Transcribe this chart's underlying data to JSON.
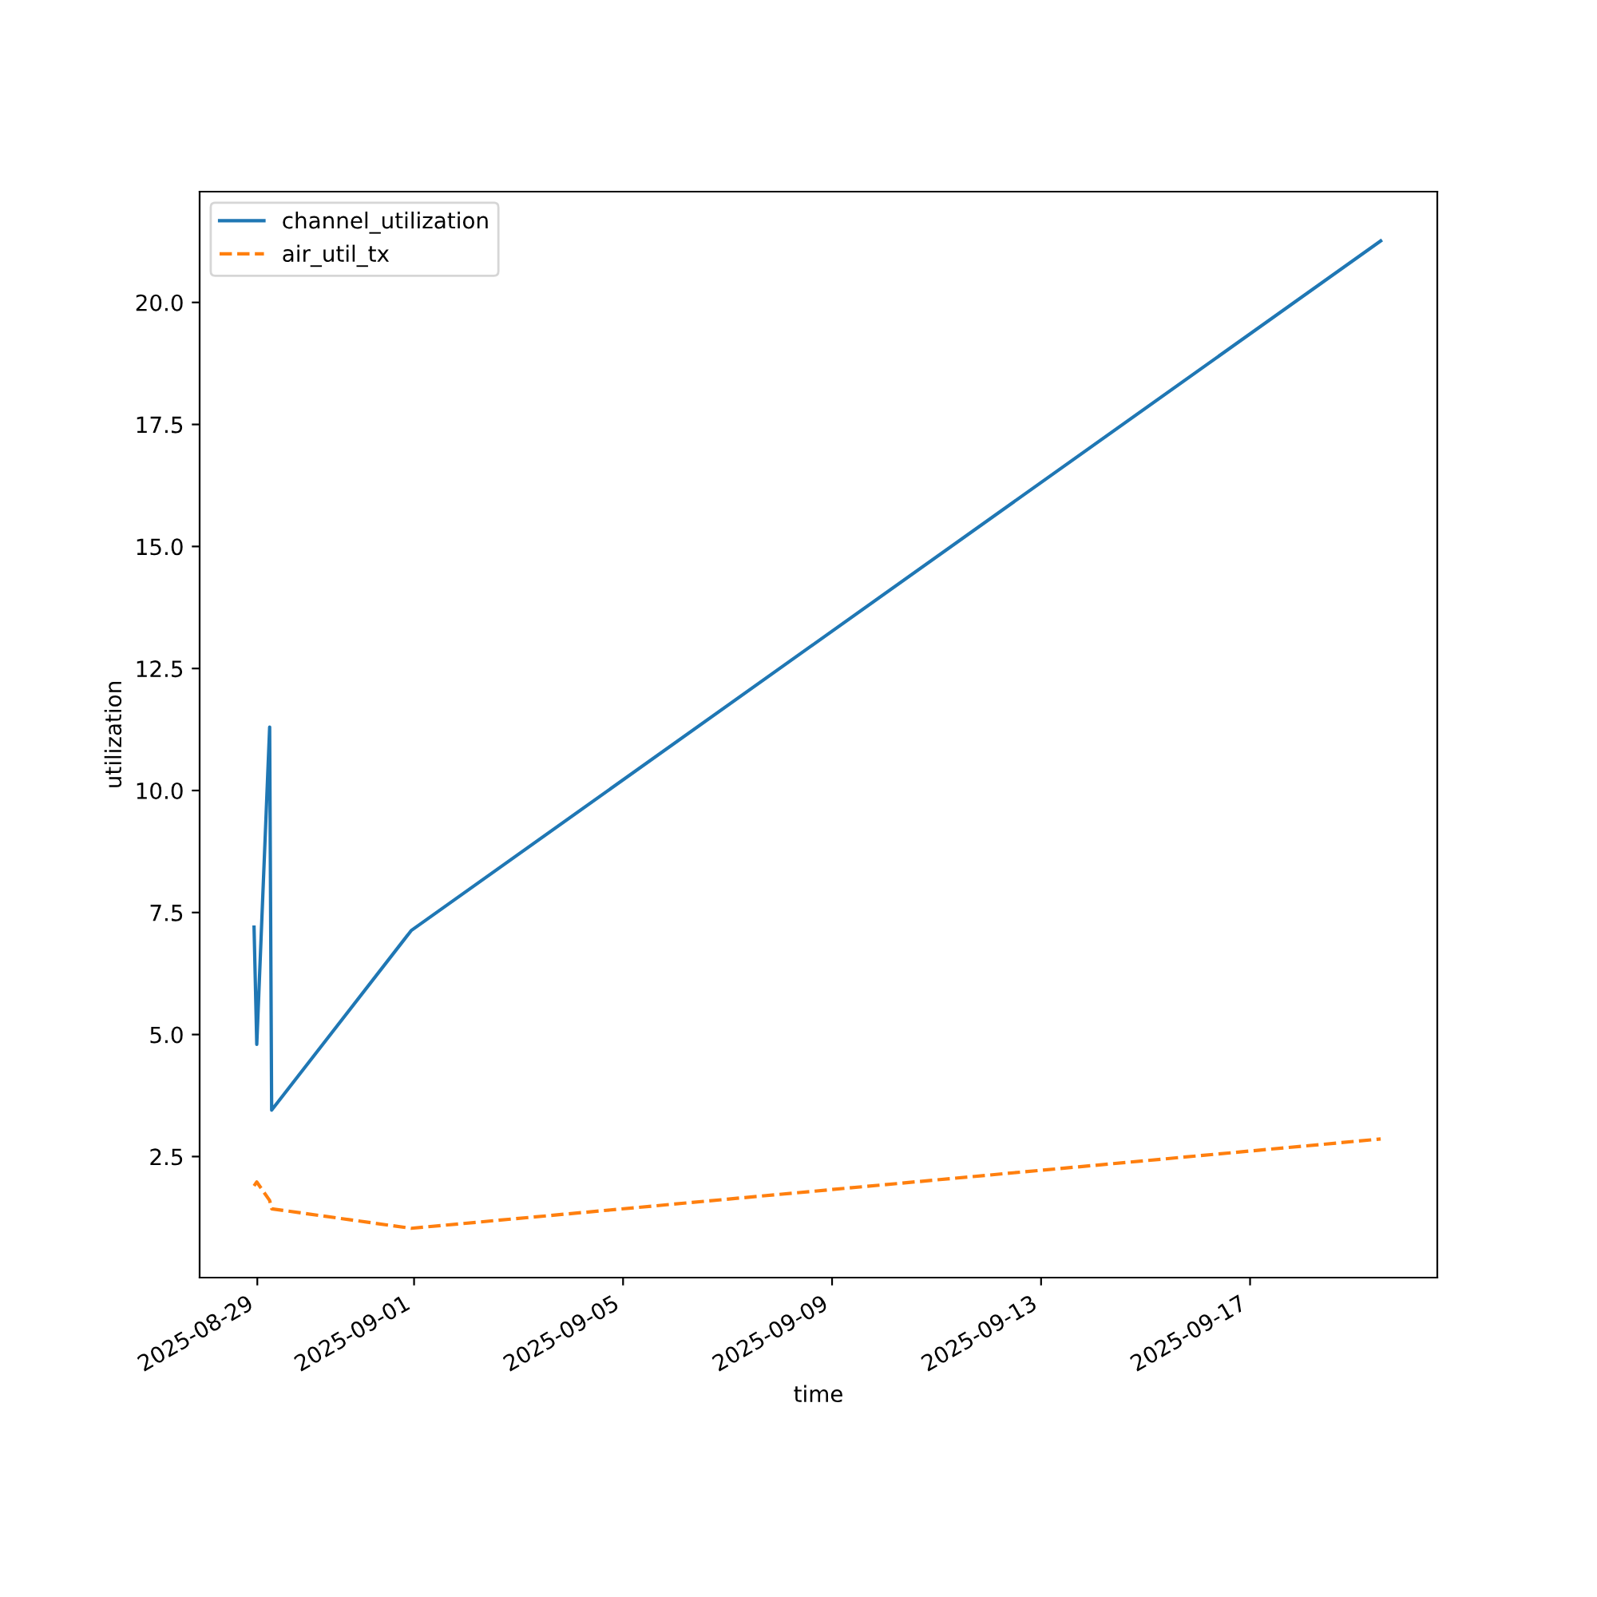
{
  "chart_data": {
    "type": "line",
    "xlabel": "time",
    "ylabel": "utilization",
    "x": [
      "2025-08-28T22:30",
      "2025-08-28T23:45",
      "2025-08-29T05:40",
      "2025-08-29T06:35",
      "2025-08-31T22:40",
      "2025-09-19T12:00"
    ],
    "series": [
      {
        "name": "channel_utilization",
        "color": "#1f77b4",
        "line_style": "solid",
        "values": [
          7.2,
          4.8,
          11.3,
          3.45,
          7.13,
          21.26
        ]
      },
      {
        "name": "air_util_tx",
        "color": "#ff7f0e",
        "line_style": "dashed",
        "values": [
          1.9,
          1.98,
          1.6,
          1.43,
          1.03,
          2.86
        ]
      }
    ],
    "xlim": [
      "2025-08-27T21:30",
      "2025-09-20T14:00"
    ],
    "xticks": [
      "2025-08-29",
      "2025-09-01",
      "2025-09-05",
      "2025-09-09",
      "2025-09-13",
      "2025-09-17"
    ],
    "ylim": [
      0.02,
      22.27
    ],
    "yticks": [
      2.5,
      {
        "value": 5,
        "label": "5.0"
      },
      7.5,
      {
        "value": 10,
        "label": "10.0"
      },
      12.5,
      {
        "value": 15,
        "label": "15.0"
      },
      17.5,
      {
        "value": 20,
        "label": "20.0"
      }
    ],
    "legend": "top left",
    "grid": false
  }
}
